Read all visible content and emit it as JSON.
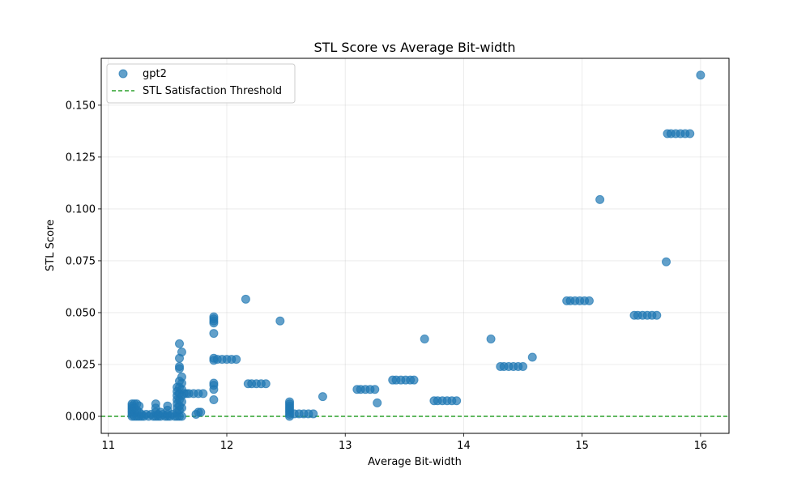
{
  "chart_data": {
    "type": "scatter",
    "title": "STL Score vs Average Bit-width",
    "xlabel": "Average Bit-width",
    "ylabel": "STL Score",
    "xlim": [
      10.94,
      16.24
    ],
    "ylim": [
      -0.0082,
      0.1726
    ],
    "xticks": [
      11,
      12,
      13,
      14,
      15,
      16
    ],
    "yticks": [
      0.0,
      0.025,
      0.05,
      0.075,
      0.1,
      0.125,
      0.15
    ],
    "ytick_labels": [
      "0.000",
      "0.025",
      "0.050",
      "0.075",
      "0.100",
      "0.125",
      "0.150"
    ],
    "grid": true,
    "legend_position": "top-left",
    "series": [
      {
        "name": "gpt2",
        "color": "#1f77b4",
        "points": [
          [
            11.2,
            0.0
          ],
          [
            11.2,
            0.001
          ],
          [
            11.2,
            0.002
          ],
          [
            11.2,
            0.003
          ],
          [
            11.2,
            0.004
          ],
          [
            11.2,
            0.005
          ],
          [
            11.2,
            0.006
          ],
          [
            11.22,
            0.0
          ],
          [
            11.22,
            0.002
          ],
          [
            11.22,
            0.004
          ],
          [
            11.22,
            0.006
          ],
          [
            11.24,
            0.0
          ],
          [
            11.24,
            0.003
          ],
          [
            11.24,
            0.006
          ],
          [
            11.26,
            0.0
          ],
          [
            11.26,
            0.002
          ],
          [
            11.26,
            0.005
          ],
          [
            11.28,
            0.0
          ],
          [
            11.28,
            0.001
          ],
          [
            11.3,
            0.0
          ],
          [
            11.32,
            0.001
          ],
          [
            11.34,
            0.0
          ],
          [
            11.36,
            0.001
          ],
          [
            11.38,
            0.0
          ],
          [
            11.4,
            0.0
          ],
          [
            11.4,
            0.002
          ],
          [
            11.4,
            0.004
          ],
          [
            11.4,
            0.006
          ],
          [
            11.42,
            0.0
          ],
          [
            11.42,
            0.001
          ],
          [
            11.44,
            0.0
          ],
          [
            11.44,
            0.002
          ],
          [
            11.46,
            0.001
          ],
          [
            11.48,
            0.0
          ],
          [
            11.5,
            0.0
          ],
          [
            11.5,
            0.001
          ],
          [
            11.5,
            0.003
          ],
          [
            11.5,
            0.005
          ],
          [
            11.52,
            0.0
          ],
          [
            11.54,
            0.001
          ],
          [
            11.56,
            0.0
          ],
          [
            11.58,
            0.0
          ],
          [
            11.58,
            0.002
          ],
          [
            11.58,
            0.004
          ],
          [
            11.58,
            0.006
          ],
          [
            11.58,
            0.008
          ],
          [
            11.58,
            0.01
          ],
          [
            11.58,
            0.012
          ],
          [
            11.58,
            0.014
          ],
          [
            11.6,
            0.0
          ],
          [
            11.6,
            0.003
          ],
          [
            11.6,
            0.005
          ],
          [
            11.6,
            0.008
          ],
          [
            11.6,
            0.011
          ],
          [
            11.6,
            0.014
          ],
          [
            11.6,
            0.017
          ],
          [
            11.6,
            0.023
          ],
          [
            11.6,
            0.024
          ],
          [
            11.6,
            0.028
          ],
          [
            11.6,
            0.035
          ],
          [
            11.62,
            0.0
          ],
          [
            11.62,
            0.004
          ],
          [
            11.62,
            0.007
          ],
          [
            11.62,
            0.01
          ],
          [
            11.62,
            0.013
          ],
          [
            11.62,
            0.016
          ],
          [
            11.62,
            0.019
          ],
          [
            11.62,
            0.031
          ],
          [
            11.64,
            0.011
          ],
          [
            11.66,
            0.011
          ],
          [
            11.68,
            0.011
          ],
          [
            11.72,
            0.011
          ],
          [
            11.76,
            0.011
          ],
          [
            11.8,
            0.011
          ],
          [
            11.74,
            0.001
          ],
          [
            11.76,
            0.002
          ],
          [
            11.78,
            0.002
          ],
          [
            11.89,
            0.008
          ],
          [
            11.89,
            0.013
          ],
          [
            11.89,
            0.015
          ],
          [
            11.89,
            0.016
          ],
          [
            11.89,
            0.027
          ],
          [
            11.89,
            0.028
          ],
          [
            11.89,
            0.04
          ],
          [
            11.89,
            0.045
          ],
          [
            11.89,
            0.046
          ],
          [
            11.89,
            0.047
          ],
          [
            11.89,
            0.048
          ],
          [
            11.92,
            0.0275
          ],
          [
            11.96,
            0.0275
          ],
          [
            12.0,
            0.0275
          ],
          [
            12.04,
            0.0275
          ],
          [
            12.08,
            0.0275
          ],
          [
            12.16,
            0.0565
          ],
          [
            12.18,
            0.0157
          ],
          [
            12.21,
            0.0157
          ],
          [
            12.25,
            0.0157
          ],
          [
            12.29,
            0.0157
          ],
          [
            12.33,
            0.0157
          ],
          [
            12.45,
            0.046
          ],
          [
            12.53,
            0.0
          ],
          [
            12.53,
            0.001
          ],
          [
            12.53,
            0.002
          ],
          [
            12.53,
            0.003
          ],
          [
            12.53,
            0.004
          ],
          [
            12.53,
            0.005
          ],
          [
            12.53,
            0.006
          ],
          [
            12.53,
            0.007
          ],
          [
            12.57,
            0.0012
          ],
          [
            12.61,
            0.0012
          ],
          [
            12.65,
            0.0012
          ],
          [
            12.69,
            0.0012
          ],
          [
            12.73,
            0.0012
          ],
          [
            12.81,
            0.0095
          ],
          [
            13.1,
            0.013
          ],
          [
            13.13,
            0.013
          ],
          [
            13.17,
            0.013
          ],
          [
            13.21,
            0.013
          ],
          [
            13.25,
            0.013
          ],
          [
            13.27,
            0.0065
          ],
          [
            13.4,
            0.0175
          ],
          [
            13.43,
            0.0175
          ],
          [
            13.47,
            0.0175
          ],
          [
            13.51,
            0.0175
          ],
          [
            13.55,
            0.0175
          ],
          [
            13.58,
            0.0175
          ],
          [
            13.67,
            0.0373
          ],
          [
            13.75,
            0.0075
          ],
          [
            13.78,
            0.0075
          ],
          [
            13.82,
            0.0075
          ],
          [
            13.86,
            0.0075
          ],
          [
            13.9,
            0.0075
          ],
          [
            13.94,
            0.0075
          ],
          [
            14.23,
            0.0373
          ],
          [
            14.31,
            0.024
          ],
          [
            14.34,
            0.024
          ],
          [
            14.38,
            0.024
          ],
          [
            14.42,
            0.024
          ],
          [
            14.46,
            0.024
          ],
          [
            14.5,
            0.024
          ],
          [
            14.58,
            0.0285
          ],
          [
            14.87,
            0.0557
          ],
          [
            14.9,
            0.0557
          ],
          [
            14.94,
            0.0557
          ],
          [
            14.98,
            0.0557
          ],
          [
            15.02,
            0.0557
          ],
          [
            15.06,
            0.0557
          ],
          [
            15.15,
            0.1045
          ],
          [
            15.44,
            0.0487
          ],
          [
            15.47,
            0.0487
          ],
          [
            15.51,
            0.0487
          ],
          [
            15.55,
            0.0487
          ],
          [
            15.59,
            0.0487
          ],
          [
            15.63,
            0.0487
          ],
          [
            15.71,
            0.0745
          ],
          [
            15.72,
            0.1363
          ],
          [
            15.75,
            0.1363
          ],
          [
            15.79,
            0.1363
          ],
          [
            15.83,
            0.1363
          ],
          [
            15.87,
            0.1363
          ],
          [
            15.91,
            0.1363
          ],
          [
            16.0,
            0.1645
          ]
        ]
      }
    ],
    "threshold": {
      "name": "STL Satisfaction Threshold",
      "value": 0.0,
      "color": "#2ca02c",
      "style": "dashed"
    }
  }
}
